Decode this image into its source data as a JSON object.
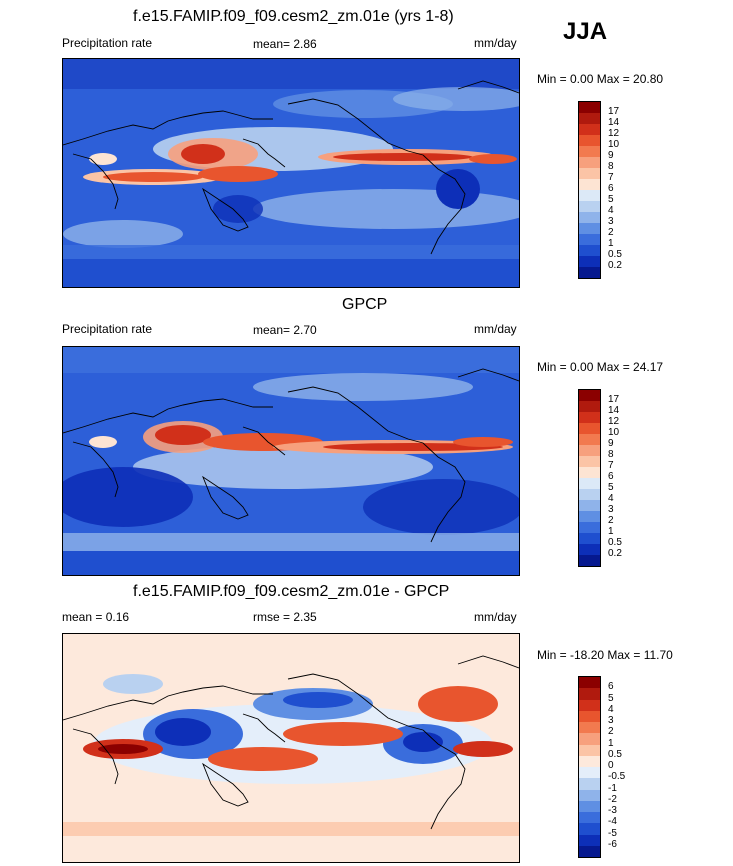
{
  "season": "JJA",
  "panels": [
    {
      "title": "f.e15.FAMIP.f09_f09.cesm2_zm.01e (yrs 1-8)",
      "left_label": "Precipitation rate",
      "mean_label": "mean=  2.86",
      "units": "mm/day",
      "minmax": "Min =  0.00 Max = 20.80",
      "colorbar_labels": [
        "17",
        "14",
        "12",
        "10",
        "9",
        "8",
        "7",
        "6",
        "5",
        "4",
        "3",
        "2",
        "1",
        "0.5",
        "0.2"
      ],
      "colorbar_colors": [
        "#8b0000",
        "#b01a0e",
        "#d1301a",
        "#e8552e",
        "#f27a4f",
        "#f7a07d",
        "#fbc4a6",
        "#fde4d3",
        "#dce9f7",
        "#b9d1f0",
        "#8fb3ea",
        "#5f8fe3",
        "#3a6ddc",
        "#1f4fcf",
        "#0d2fb8",
        "#06198f"
      ]
    },
    {
      "title": "GPCP",
      "left_label": "Precipitation rate",
      "mean_label": "mean=  2.70",
      "units": "mm/day",
      "minmax": "Min =  0.00 Max = 24.17",
      "colorbar_labels": [
        "17",
        "14",
        "12",
        "10",
        "9",
        "8",
        "7",
        "6",
        "5",
        "4",
        "3",
        "2",
        "1",
        "0.5",
        "0.2"
      ],
      "colorbar_colors": [
        "#8b0000",
        "#b01a0e",
        "#d1301a",
        "#e8552e",
        "#f27a4f",
        "#f7a07d",
        "#fbc4a6",
        "#fde4d3",
        "#dce9f7",
        "#b9d1f0",
        "#8fb3ea",
        "#5f8fe3",
        "#3a6ddc",
        "#1f4fcf",
        "#0d2fb8",
        "#06198f"
      ]
    },
    {
      "title": "f.e15.FAMIP.f09_f09.cesm2_zm.01e - GPCP",
      "left_label": "mean =  0.16",
      "mean_label": "rmse =  2.35",
      "units": "mm/day",
      "minmax": "Min = -18.20 Max = 11.70",
      "colorbar_labels": [
        "6",
        "5",
        "4",
        "3",
        "2",
        "1",
        "0.5",
        "0",
        "-0.5",
        "-1",
        "-2",
        "-3",
        "-4",
        "-5",
        "-6"
      ],
      "colorbar_colors": [
        "#8b0000",
        "#b01a0e",
        "#d1301a",
        "#e8552e",
        "#f27a4f",
        "#f7a07d",
        "#fbc4a6",
        "#fde9dc",
        "#e4eefa",
        "#b9d1f0",
        "#8fb3ea",
        "#5f8fe3",
        "#3a6ddc",
        "#1f4fcf",
        "#0d2fb8",
        "#06198f"
      ]
    }
  ]
}
